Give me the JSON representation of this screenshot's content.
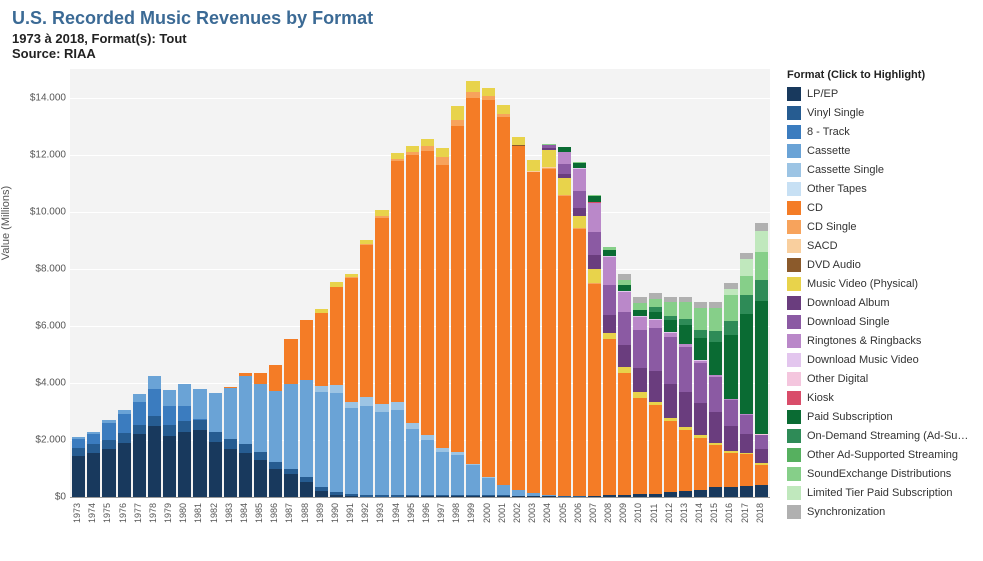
{
  "header": {
    "title": "U.S. Recorded Music Revenues by Format",
    "subtitle": "1973 à 2018, Format(s): Tout",
    "source": "Source: RIAA"
  },
  "chart": {
    "type": "stacked-bar",
    "background_color": "#f3f3f3",
    "grid_color": "#ffffff",
    "y_axis": {
      "label": "Value (Millions)",
      "min": 0,
      "max": 15000,
      "tick_step": 2000,
      "tick_prefix": "$",
      "tick_format": "0.000",
      "ticks": [
        "$0",
        "$2.000",
        "$4.000",
        "$6.000",
        "$8.000",
        "$10.000",
        "$12.000",
        "$14.000"
      ]
    },
    "years": [
      1973,
      1974,
      1975,
      1976,
      1977,
      1978,
      1979,
      1980,
      1981,
      1982,
      1983,
      1984,
      1985,
      1986,
      1987,
      1988,
      1989,
      1990,
      1991,
      1992,
      1993,
      1994,
      1995,
      1996,
      1997,
      1998,
      1999,
      2000,
      2001,
      2002,
      2003,
      2004,
      2005,
      2006,
      2007,
      2008,
      2009,
      2010,
      2011,
      2012,
      2013,
      2014,
      2015,
      2016,
      2017,
      2018
    ],
    "formats": [
      {
        "key": "lp_ep",
        "label": "LP/EP",
        "color": "#18395d"
      },
      {
        "key": "vinyl_single",
        "label": "Vinyl Single",
        "color": "#265c91"
      },
      {
        "key": "eight_track",
        "label": "8 - Track",
        "color": "#3b7cbf"
      },
      {
        "key": "cassette",
        "label": "Cassette",
        "color": "#6aa3d6"
      },
      {
        "key": "cassette_single",
        "label": "Cassette Single",
        "color": "#9cc4e4"
      },
      {
        "key": "other_tapes",
        "label": "Other Tapes",
        "color": "#c7e0f4"
      },
      {
        "key": "cd",
        "label": "CD",
        "color": "#f47c26"
      },
      {
        "key": "cd_single",
        "label": "CD Single",
        "color": "#f7a35c"
      },
      {
        "key": "sacd",
        "label": "SACD",
        "color": "#f9cf9e"
      },
      {
        "key": "dvd_audio",
        "label": "DVD Audio",
        "color": "#8b5a2b"
      },
      {
        "key": "music_video",
        "label": "Music Video (Physical)",
        "color": "#e8d34b"
      },
      {
        "key": "download_album",
        "label": "Download Album",
        "color": "#6a3d7e"
      },
      {
        "key": "download_single",
        "label": "Download Single",
        "color": "#8b5aa3"
      },
      {
        "key": "ringtones",
        "label": "Ringtones & Ringbacks",
        "color": "#ba88c9"
      },
      {
        "key": "download_mv",
        "label": "Download Music Video",
        "color": "#e3c6ee"
      },
      {
        "key": "other_digital",
        "label": "Other Digital",
        "color": "#f4c6de"
      },
      {
        "key": "kiosk",
        "label": "Kiosk",
        "color": "#d94d6a"
      },
      {
        "key": "paid_sub",
        "label": "Paid Subscription",
        "color": "#0a6b33"
      },
      {
        "key": "on_demand_stream",
        "label": "On-Demand Streaming (Ad-Support...",
        "color": "#2e8b57"
      },
      {
        "key": "other_ad_stream",
        "label": "Other Ad-Supported Streaming",
        "color": "#56b05f"
      },
      {
        "key": "soundexchange",
        "label": "SoundExchange Distributions",
        "color": "#86cf89"
      },
      {
        "key": "limited_tier",
        "label": "Limited Tier Paid Subscription",
        "color": "#c0e8bd"
      },
      {
        "key": "sync",
        "label": "Synchronization",
        "color": "#b0b0b0"
      }
    ],
    "data": {
      "lp_ep": [
        1436,
        1550,
        1697,
        1908,
        2195,
        2473,
        2136,
        2290,
        2342,
        1925,
        1689,
        1549,
        1281,
        983,
        793,
        532,
        220,
        87,
        29,
        14,
        11,
        18,
        25,
        37,
        33,
        34,
        32,
        28,
        27,
        20,
        22,
        19,
        14,
        16,
        23,
        57,
        64,
        89,
        119,
        163,
        211,
        244,
        334,
        360,
        389,
        419
      ],
      "vinyl_single": [
        298,
        304,
        312,
        330,
        340,
        360,
        375,
        369,
        357,
        345,
        335,
        315,
        281,
        228,
        203,
        180,
        116,
        94,
        64,
        67,
        51,
        48,
        47,
        48,
        36,
        26,
        28,
        27,
        31,
        25,
        22,
        20,
        13,
        11,
        4,
        3,
        3,
        2,
        2,
        2,
        3,
        3,
        6,
        6,
        7,
        8
      ],
      "eight_track": [
        289,
        349,
        583,
        678,
        811,
        948,
        670,
        526,
        31,
        0,
        0,
        0,
        0,
        0,
        0,
        0,
        0,
        0,
        0,
        0,
        0,
        0,
        0,
        0,
        0,
        0,
        0,
        0,
        0,
        0,
        0,
        0,
        0,
        0,
        0,
        0,
        0,
        0,
        0,
        0,
        0,
        0,
        0,
        0,
        0,
        0
      ],
      "cassette": [
        76,
        88,
        99,
        146,
        250,
        450,
        580,
        776,
        1062,
        1384,
        1811,
        2384,
        2412,
        2500,
        2960,
        3385,
        3346,
        3472,
        3020,
        3116,
        2916,
        2976,
        2304,
        1905,
        1523,
        1420,
        1062,
        626,
        363,
        210,
        108,
        24,
        13,
        4,
        3,
        1,
        0,
        0,
        0,
        0,
        0,
        0,
        0,
        0,
        0,
        0
      ],
      "cassette_single": [
        0,
        0,
        0,
        0,
        0,
        0,
        0,
        0,
        0,
        0,
        0,
        0,
        0,
        0,
        0,
        14,
        195,
        258,
        230,
        298,
        298,
        274,
        236,
        189,
        133,
        94,
        48,
        5,
        0,
        0,
        0,
        0,
        0,
        0,
        0,
        0,
        0,
        0,
        0,
        0,
        0,
        0,
        0,
        0,
        0,
        0
      ],
      "other_tapes": [
        0,
        0,
        0,
        0,
        0,
        0,
        0,
        0,
        0,
        0,
        0,
        0,
        0,
        0,
        0,
        0,
        0,
        0,
        0,
        0,
        0,
        0,
        0,
        0,
        0,
        0,
        0,
        0,
        0,
        0,
        0,
        0,
        0,
        0,
        0,
        0,
        0,
        0,
        0,
        0,
        0,
        0,
        0,
        0,
        0,
        0
      ],
      "cd": [
        0,
        0,
        0,
        0,
        0,
        0,
        0,
        0,
        0,
        0,
        17,
        103,
        390,
        930,
        1594,
        2090,
        2588,
        3452,
        4338,
        5327,
        6511,
        8465,
        9377,
        9935,
        9915,
        11416,
        12816,
        13215,
        12909,
        12044,
        11233,
        11446,
        10520,
        9373,
        7452,
        5471,
        4274,
        3389,
        3101,
        2486,
        2124,
        1833,
        1483,
        1174,
        1103,
        698
      ],
      "cd_single": [
        0,
        0,
        0,
        0,
        0,
        0,
        0,
        0,
        0,
        0,
        0,
        0,
        0,
        0,
        0,
        10,
        0,
        6,
        36,
        45,
        46,
        56,
        111,
        184,
        273,
        213,
        223,
        143,
        80,
        20,
        8,
        15,
        11,
        8,
        12,
        4,
        3,
        2,
        2,
        2,
        2,
        1,
        1,
        1,
        1,
        1
      ],
      "sacd": [
        0,
        0,
        0,
        0,
        0,
        0,
        0,
        0,
        0,
        0,
        0,
        0,
        0,
        0,
        0,
        0,
        0,
        0,
        0,
        0,
        0,
        0,
        0,
        0,
        0,
        0,
        0,
        0,
        0,
        0,
        26,
        30,
        10,
        0,
        0,
        0,
        0,
        0,
        0,
        0,
        0,
        0,
        0,
        0,
        0,
        0
      ],
      "dvd_audio": [
        0,
        0,
        0,
        0,
        0,
        0,
        0,
        0,
        0,
        0,
        0,
        0,
        0,
        0,
        0,
        0,
        0,
        0,
        0,
        0,
        0,
        0,
        0,
        0,
        0,
        0,
        0,
        0,
        6,
        9,
        11,
        11,
        3,
        2,
        3,
        2,
        0,
        0,
        0,
        0,
        0,
        0,
        0,
        0,
        0,
        0
      ],
      "music_video": [
        0,
        0,
        0,
        0,
        0,
        0,
        0,
        0,
        0,
        0,
        0,
        0,
        0,
        0,
        0,
        0,
        115,
        172,
        118,
        157,
        213,
        231,
        220,
        236,
        324,
        508,
        377,
        282,
        330,
        289,
        400,
        607,
        602,
        451,
        484,
        219,
        227,
        183,
        115,
        118,
        110,
        92,
        74,
        70,
        58,
        51
      ],
      "download_album": [
        0,
        0,
        0,
        0,
        0,
        0,
        0,
        0,
        0,
        0,
        0,
        0,
        0,
        0,
        0,
        0,
        0,
        0,
        0,
        0,
        0,
        0,
        0,
        0,
        0,
        0,
        0,
        0,
        0,
        0,
        0,
        46,
        136,
        276,
        497,
        636,
        764,
        872,
        1071,
        1199,
        1233,
        1118,
        1091,
        876,
        669,
        500
      ],
      "download_single": [
        0,
        0,
        0,
        0,
        0,
        0,
        0,
        0,
        0,
        0,
        0,
        0,
        0,
        0,
        0,
        0,
        0,
        0,
        0,
        0,
        0,
        0,
        0,
        0,
        0,
        0,
        0,
        0,
        0,
        0,
        0,
        139,
        363,
        581,
        802,
        1033,
        1138,
        1328,
        1523,
        1623,
        1570,
        1417,
        1227,
        907,
        649,
        490
      ],
      "ringtones": [
        0,
        0,
        0,
        0,
        0,
        0,
        0,
        0,
        0,
        0,
        0,
        0,
        0,
        0,
        0,
        0,
        0,
        0,
        0,
        0,
        0,
        0,
        0,
        0,
        0,
        0,
        0,
        0,
        0,
        0,
        0,
        0,
        422,
        774,
        1016,
        977,
        714,
        448,
        277,
        167,
        98,
        66,
        55,
        36,
        22,
        15
      ],
      "download_mv": [
        0,
        0,
        0,
        0,
        0,
        0,
        0,
        0,
        0,
        0,
        0,
        0,
        0,
        0,
        0,
        0,
        0,
        0,
        0,
        0,
        0,
        0,
        0,
        0,
        0,
        0,
        0,
        0,
        0,
        0,
        0,
        0,
        4,
        20,
        28,
        41,
        41,
        35,
        31,
        25,
        20,
        17,
        14,
        10,
        7,
        5
      ],
      "other_digital": [
        0,
        0,
        0,
        0,
        0,
        0,
        0,
        0,
        0,
        0,
        0,
        0,
        0,
        0,
        0,
        0,
        0,
        0,
        0,
        0,
        0,
        0,
        0,
        0,
        0,
        0,
        0,
        0,
        0,
        0,
        0,
        0,
        0,
        0,
        0,
        0,
        0,
        0,
        4,
        3,
        3,
        3,
        2,
        2,
        17,
        20
      ],
      "kiosk": [
        0,
        0,
        0,
        0,
        0,
        0,
        0,
        0,
        0,
        0,
        0,
        0,
        0,
        0,
        0,
        0,
        0,
        0,
        0,
        0,
        0,
        0,
        0,
        0,
        0,
        0,
        0,
        0,
        0,
        0,
        0,
        0,
        1,
        2,
        3,
        3,
        3,
        3,
        3,
        3,
        3,
        2,
        2,
        1,
        1,
        0
      ],
      "paid_sub": [
        0,
        0,
        0,
        0,
        0,
        0,
        0,
        0,
        0,
        0,
        0,
        0,
        0,
        0,
        0,
        0,
        0,
        0,
        0,
        0,
        0,
        0,
        0,
        0,
        0,
        0,
        0,
        0,
        0,
        0,
        0,
        0,
        149,
        206,
        236,
        228,
        213,
        212,
        242,
        400,
        639,
        770,
        1157,
        2244,
        3504,
        4659
      ],
      "on_demand_stream": [
        0,
        0,
        0,
        0,
        0,
        0,
        0,
        0,
        0,
        0,
        0,
        0,
        0,
        0,
        0,
        0,
        0,
        0,
        0,
        0,
        0,
        0,
        0,
        0,
        0,
        0,
        0,
        0,
        0,
        0,
        0,
        0,
        0,
        0,
        0,
        0,
        0,
        0,
        171,
        172,
        220,
        295,
        385,
        500,
        659,
        760
      ],
      "other_ad_stream": [
        0,
        0,
        0,
        0,
        0,
        0,
        0,
        0,
        0,
        0,
        0,
        0,
        0,
        0,
        0,
        0,
        0,
        0,
        0,
        0,
        0,
        0,
        0,
        0,
        0,
        0,
        0,
        0,
        0,
        0,
        0,
        0,
        0,
        0,
        0,
        0,
        0,
        0,
        0,
        0,
        0,
        0,
        0,
        0,
        0,
        0
      ],
      "soundexchange": [
        0,
        0,
        0,
        0,
        0,
        0,
        0,
        0,
        0,
        0,
        0,
        0,
        0,
        0,
        0,
        0,
        0,
        0,
        0,
        0,
        0,
        0,
        0,
        0,
        0,
        0,
        0,
        0,
        0,
        0,
        0,
        7,
        20,
        31,
        36,
        100,
        156,
        249,
        292,
        462,
        590,
        773,
        803,
        884,
        652,
        953
      ],
      "limited_tier": [
        0,
        0,
        0,
        0,
        0,
        0,
        0,
        0,
        0,
        0,
        0,
        0,
        0,
        0,
        0,
        0,
        0,
        0,
        0,
        0,
        0,
        0,
        0,
        0,
        0,
        0,
        0,
        0,
        0,
        0,
        0,
        0,
        0,
        0,
        0,
        0,
        0,
        0,
        0,
        0,
        0,
        0,
        0,
        227,
        592,
        747
      ],
      "sync": [
        0,
        0,
        0,
        0,
        0,
        0,
        0,
        0,
        0,
        0,
        0,
        0,
        0,
        0,
        0,
        0,
        0,
        0,
        0,
        0,
        0,
        0,
        0,
        0,
        0,
        0,
        0,
        0,
        0,
        0,
        0,
        0,
        0,
        0,
        0,
        0,
        203,
        189,
        196,
        191,
        190,
        189,
        203,
        214,
        233,
        285
      ]
    }
  },
  "legend": {
    "title": "Format (Click to Highlight)"
  },
  "style": {
    "title_color": "#3b6a95",
    "title_fontsize": 18,
    "subtitle_fontsize": 13,
    "axis_label_fontsize": 11,
    "tick_fontsize": 10,
    "x_tick_fontsize": 9,
    "legend_fontsize": 11
  }
}
